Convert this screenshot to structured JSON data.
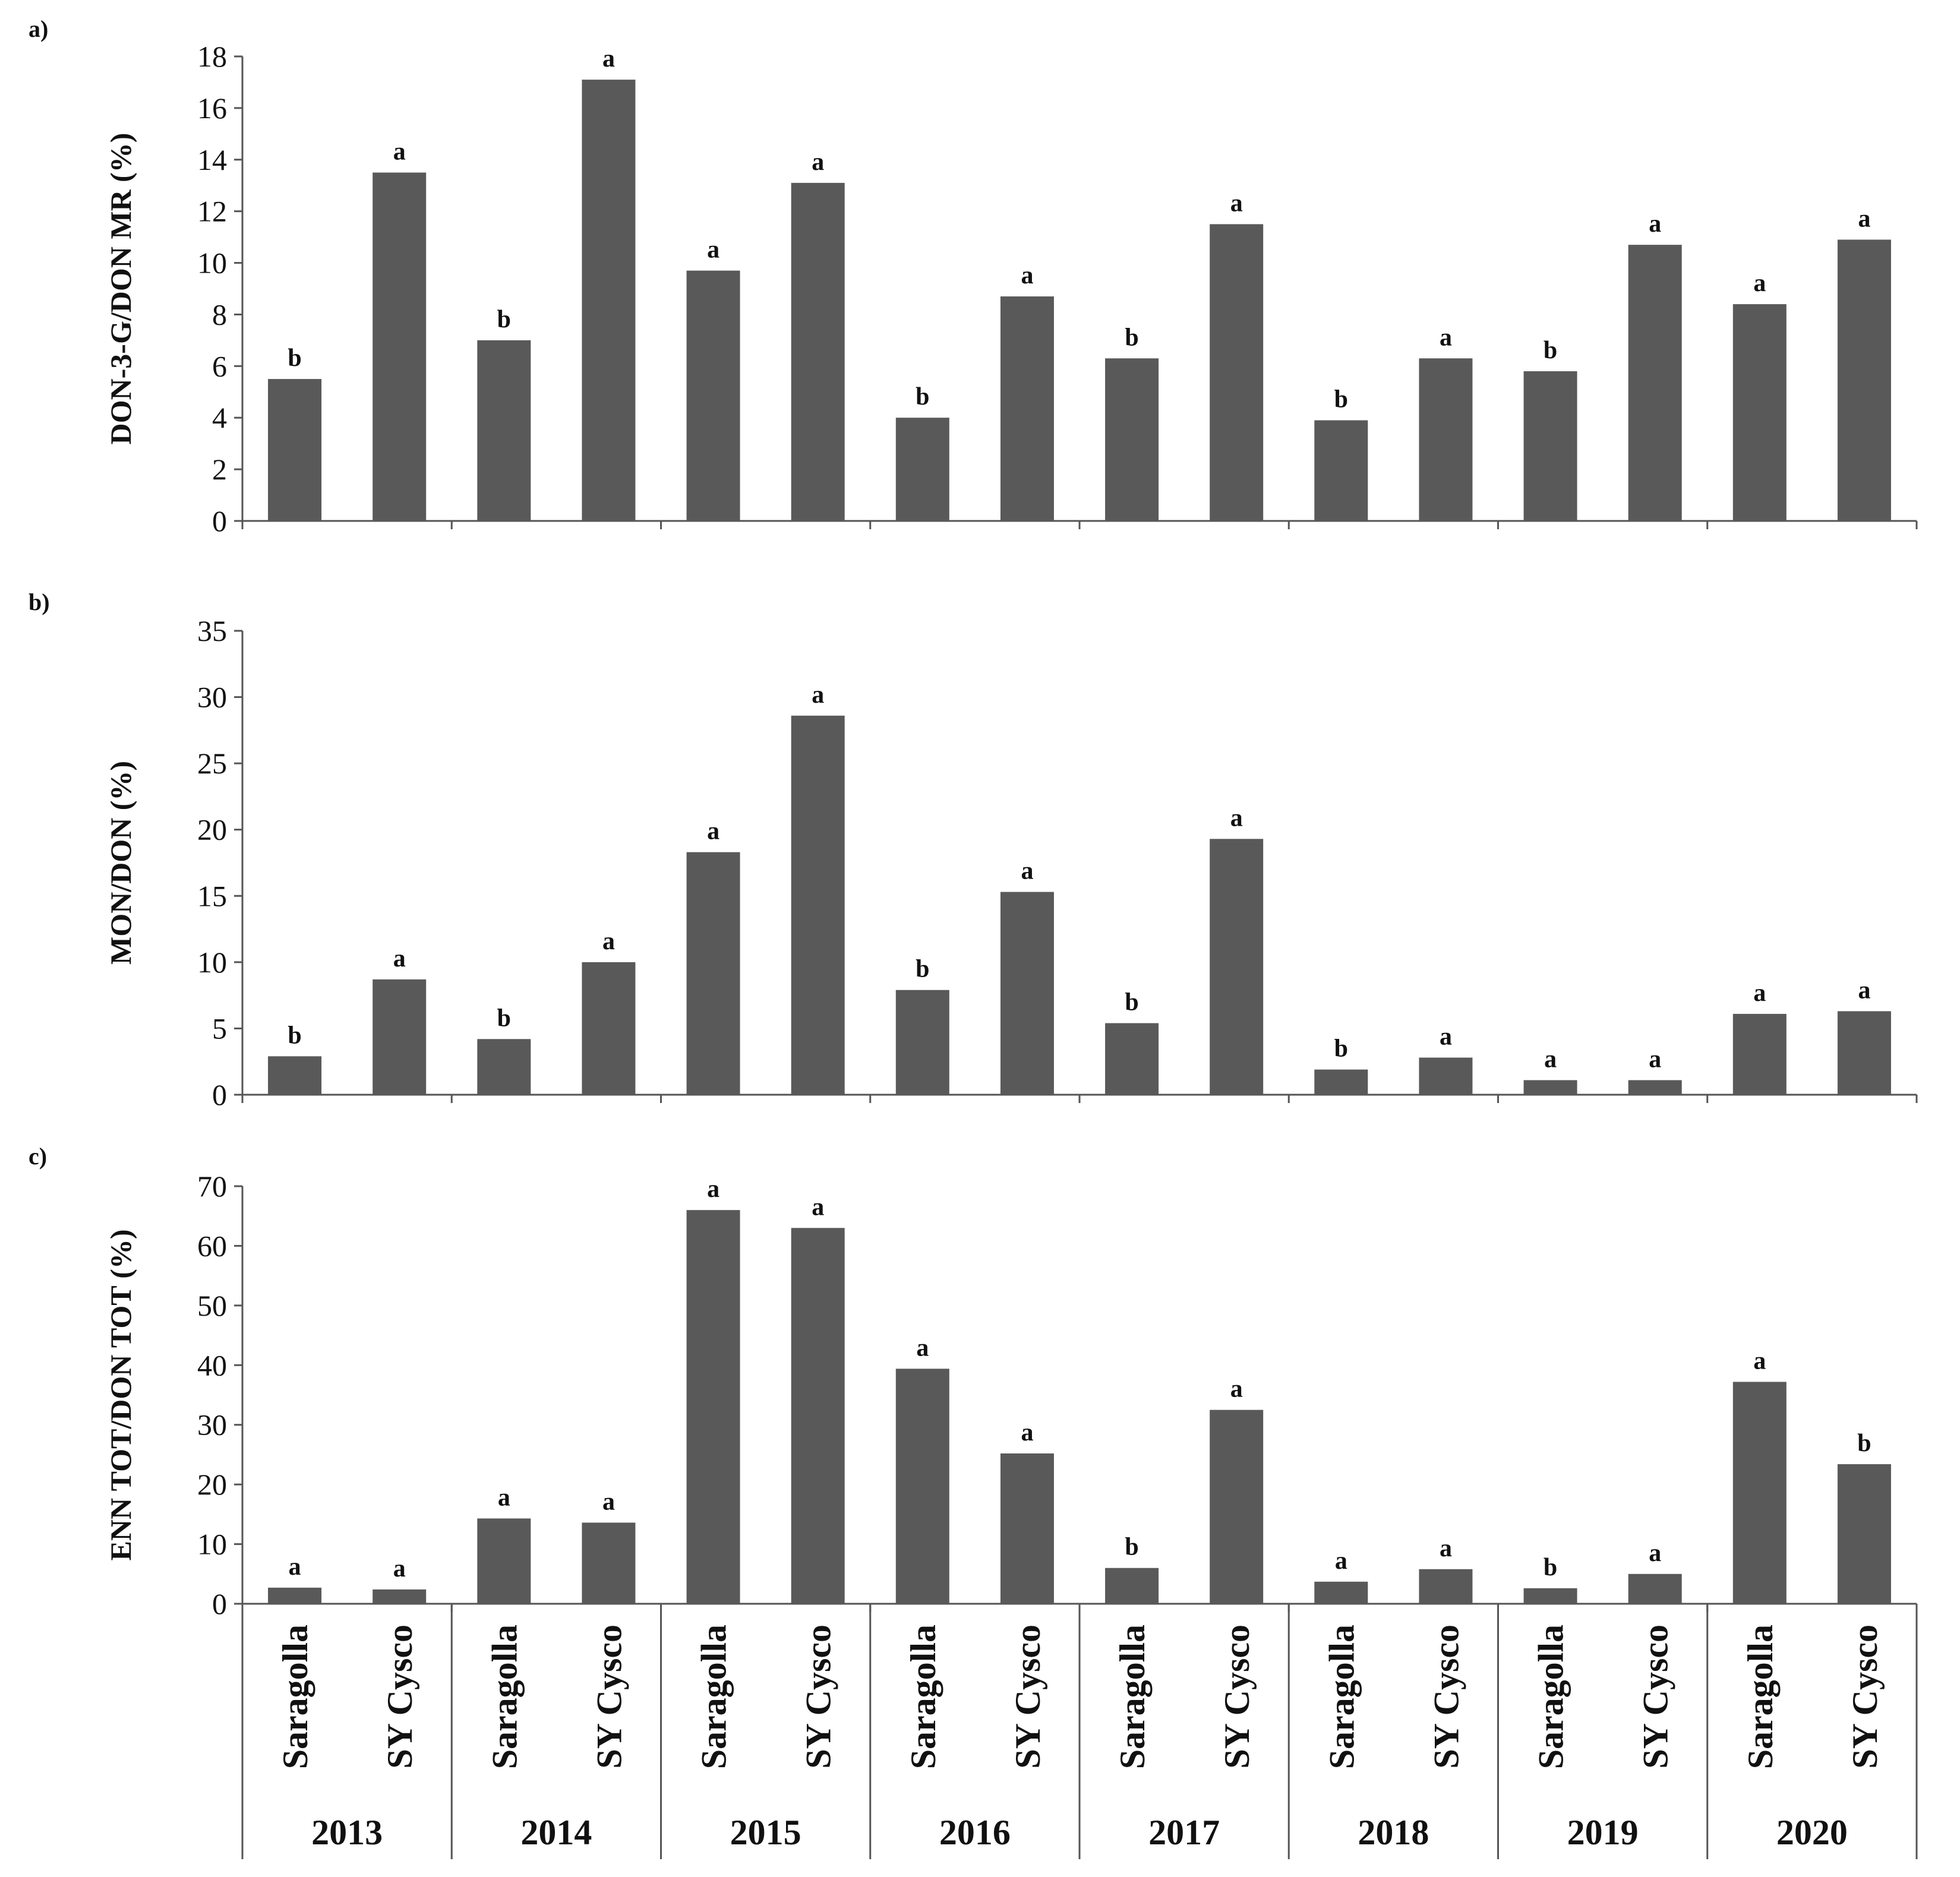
{
  "chart_data": [
    {
      "type": "bar",
      "panel": "a)",
      "ylabel": "DON-3-G/DON MR (%)",
      "ylim": [
        0,
        18
      ],
      "yticks": [
        0,
        2,
        4,
        6,
        8,
        10,
        12,
        14,
        16,
        18
      ],
      "bar_color": "#595959",
      "values": [
        5.5,
        13.5,
        7.0,
        17.1,
        9.7,
        13.1,
        4.0,
        8.7,
        6.3,
        11.5,
        3.9,
        6.3,
        5.8,
        10.7,
        8.4,
        10.9
      ],
      "significance": [
        "b",
        "a",
        "b",
        "a",
        "a",
        "a",
        "b",
        "a",
        "b",
        "a",
        "b",
        "a",
        "b",
        "a",
        "a",
        "a"
      ]
    },
    {
      "type": "bar",
      "panel": "b)",
      "ylabel": "MON/DON (%)",
      "ylim": [
        0,
        35
      ],
      "yticks": [
        0,
        5,
        10,
        15,
        20,
        25,
        30,
        35
      ],
      "bar_color": "#595959",
      "values": [
        2.9,
        8.7,
        4.2,
        10.0,
        18.3,
        28.6,
        7.9,
        15.3,
        5.4,
        19.3,
        1.9,
        2.8,
        1.1,
        1.1,
        6.1,
        6.3
      ],
      "significance": [
        "b",
        "a",
        "b",
        "a",
        "a",
        "a",
        "b",
        "a",
        "b",
        "a",
        "b",
        "a",
        "a",
        "a",
        "a",
        "a"
      ]
    },
    {
      "type": "bar",
      "panel": "c)",
      "ylabel": "ENN TOT/DON TOT (%)",
      "ylim": [
        0,
        70
      ],
      "yticks": [
        0,
        10,
        20,
        30,
        40,
        50,
        60,
        70
      ],
      "bar_color": "#595959",
      "values": [
        2.7,
        2.4,
        14.3,
        13.6,
        66.0,
        63.0,
        39.4,
        25.2,
        6.0,
        32.5,
        3.7,
        5.8,
        2.6,
        5.0,
        37.2,
        23.4
      ],
      "significance": [
        "a",
        "a",
        "a",
        "a",
        "a",
        "a",
        "a",
        "a",
        "b",
        "a",
        "a",
        "a",
        "b",
        "a",
        "a",
        "b"
      ]
    }
  ],
  "categories": [
    "Saragolla",
    "SY Cysco",
    "Saragolla",
    "SY Cysco",
    "Saragolla",
    "SY Cysco",
    "Saragolla",
    "SY Cysco",
    "Saragolla",
    "SY Cysco",
    "Saragolla",
    "SY Cysco",
    "Saragolla",
    "SY Cysco",
    "Saragolla",
    "SY Cysco"
  ],
  "years": [
    "2013",
    "2014",
    "2015",
    "2016",
    "2017",
    "2018",
    "2019",
    "2020"
  ]
}
